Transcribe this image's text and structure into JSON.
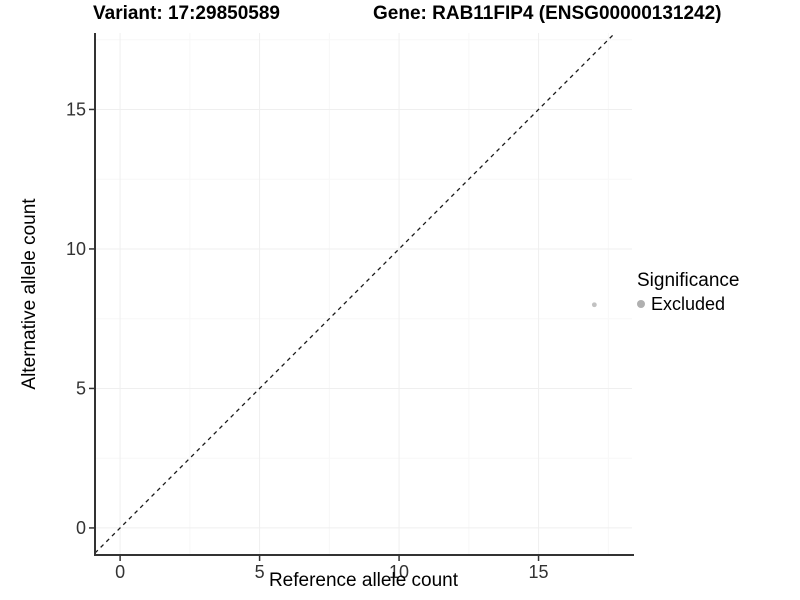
{
  "header": {
    "variant_title": "Variant: 17:29850589",
    "gene_title": "Gene: RAB11FIP4 (ENSG00000131242)"
  },
  "chart_data": {
    "type": "scatter",
    "xlabel": "Reference allele count",
    "ylabel": "Alternative allele count",
    "xlim": [
      -0.9,
      18.35
    ],
    "ylim": [
      -0.97,
      17.74
    ],
    "x_ticks": [
      0,
      5,
      10,
      15
    ],
    "y_ticks": [
      0,
      5,
      10,
      15
    ],
    "minor_tick_offset": 2.5,
    "grid": "major+minor",
    "background": "#ffffff",
    "axis_line_color": "#333333",
    "grid_major_color": "#efefef",
    "grid_minor_color": "#f7f7f7",
    "identity_line": {
      "type": "abline",
      "slope": 1,
      "intercept": 0,
      "style": "dashed",
      "color": "#1a1a1a"
    },
    "series": [
      {
        "name": "Excluded",
        "color": "#c2c2c2",
        "point_radius": 2.4,
        "points": [
          {
            "x": 17,
            "y": 8
          }
        ]
      }
    ],
    "legend": {
      "title": "Significance",
      "position": "right",
      "entries": [
        {
          "label": "Excluded",
          "color": "#b0b0b0"
        }
      ]
    }
  }
}
